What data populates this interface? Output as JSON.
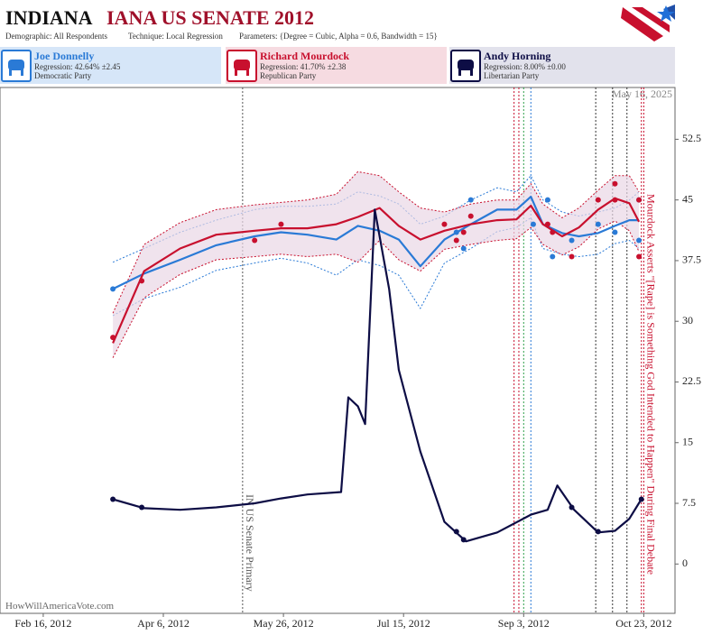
{
  "chart_data": {
    "type": "line",
    "title_state": "INDIANA",
    "title": "IANA US SENATE 2012",
    "demographic": "Demographic: All Respondents",
    "technique": "Technique: Local Regression",
    "parameters": "Parameters: {Degree = Cubic, Alpha = 0.6, Bandwidth = 15}",
    "date_note": "May 16, 2025",
    "source": "HowWillAmericaVote.com",
    "xlim": [
      "2012-01-29",
      "2012-11-05"
    ],
    "xticks": [
      {
        "value": "2012-02-16",
        "label": "Feb 16, 2012"
      },
      {
        "value": "2012-04-06",
        "label": "Apr 6, 2012"
      },
      {
        "value": "2012-05-26",
        "label": "May 26, 2012"
      },
      {
        "value": "2012-07-15",
        "label": "Jul 15, 2012"
      },
      {
        "value": "2012-09-03",
        "label": "Sep 3, 2012"
      },
      {
        "value": "2012-10-23",
        "label": "Oct 23, 2012"
      }
    ],
    "ylim": [
      -6.1,
      58.9
    ],
    "yticks": [
      0,
      7.5,
      15,
      22.5,
      30,
      37.5,
      45,
      52.5
    ],
    "grid": false,
    "series": [
      {
        "name": "Joe Donnelly",
        "regression": "Regression: 42.64% ±2.45",
        "party": "Democratic Party",
        "color": "#2a7ad6",
        "panel": "#d6e6f8",
        "x": [
          "2012-03-16",
          "2012-03-29",
          "2012-04-13",
          "2012-04-28",
          "2012-05-14",
          "2012-05-25",
          "2012-06-05",
          "2012-06-17",
          "2012-06-26",
          "2012-07-05",
          "2012-07-13",
          "2012-07-22",
          "2012-08-01",
          "2012-08-12",
          "2012-08-23",
          "2012-08-31",
          "2012-09-06",
          "2012-09-11",
          "2012-09-19",
          "2012-09-26",
          "2012-10-04",
          "2012-10-11",
          "2012-10-17",
          "2012-10-21"
        ],
        "values": [
          34.0,
          35.9,
          37.6,
          39.4,
          40.5,
          41.0,
          40.7,
          40.1,
          41.8,
          41.2,
          40.1,
          36.8,
          40.1,
          42.0,
          43.8,
          43.8,
          45.4,
          42.0,
          40.9,
          40.5,
          40.9,
          41.8,
          42.5,
          42.5
        ],
        "upper": [
          37.3,
          39,
          41,
          42.5,
          43.8,
          44.2,
          44.2,
          44.5,
          46,
          45.5,
          44.5,
          42,
          43,
          45,
          46.5,
          46,
          48,
          45,
          43.5,
          43,
          43.5,
          44,
          45,
          46
        ],
        "lower": [
          30.7,
          32.8,
          34.2,
          36.3,
          37.2,
          37.8,
          37.2,
          35.7,
          37.6,
          36.9,
          35.7,
          31.6,
          37.2,
          39,
          41.1,
          41.6,
          42.8,
          39,
          38.3,
          38,
          38.3,
          39.6,
          40,
          39
        ],
        "poll_x": [
          "2012-03-16",
          "2012-08-06",
          "2012-08-09",
          "2012-08-12",
          "2012-09-07",
          "2012-09-13",
          "2012-09-15",
          "2012-09-23",
          "2012-10-04",
          "2012-10-11",
          "2012-10-21",
          "2012-10-21"
        ],
        "poll_values": [
          34,
          41,
          39,
          45,
          42,
          45,
          38,
          40,
          42,
          41,
          45,
          40
        ]
      },
      {
        "name": "Richard Mourdock",
        "regression": "Regression: 41.70% ±2.38",
        "party": "Republican Party",
        "color": "#c8102e",
        "panel": "#f6dbe1",
        "x": [
          "2012-03-16",
          "2012-03-29",
          "2012-04-13",
          "2012-04-28",
          "2012-05-14",
          "2012-05-25",
          "2012-06-05",
          "2012-06-17",
          "2012-06-26",
          "2012-07-05",
          "2012-07-13",
          "2012-07-22",
          "2012-08-01",
          "2012-08-12",
          "2012-08-23",
          "2012-08-31",
          "2012-09-06",
          "2012-09-11",
          "2012-09-19",
          "2012-09-26",
          "2012-10-04",
          "2012-10-11",
          "2012-10-17",
          "2012-10-21"
        ],
        "values": [
          27.3,
          36.2,
          39.0,
          40.7,
          41.2,
          41.5,
          41.5,
          42.0,
          42.9,
          44.0,
          41.8,
          40.1,
          41.2,
          42.0,
          42.5,
          42.6,
          44.3,
          42.0,
          40.5,
          41.6,
          43.8,
          45.2,
          44.6,
          42.3
        ],
        "upper": [
          31,
          39.5,
          42.2,
          43.8,
          44.4,
          44.7,
          45,
          45.7,
          48.5,
          48,
          46,
          44,
          43.5,
          44.5,
          45,
          45,
          47,
          44.5,
          42.8,
          44,
          46.2,
          48,
          48,
          46
        ],
        "lower": [
          25.5,
          32.9,
          35.8,
          37.6,
          38,
          38.3,
          38,
          38.3,
          37.3,
          40,
          37.6,
          36.2,
          38.9,
          39.5,
          40,
          40.2,
          41.6,
          39.5,
          38.2,
          39.2,
          41.4,
          42.4,
          41.2,
          38.6
        ],
        "poll_x": [
          "2012-03-16",
          "2012-03-28",
          "2012-05-14",
          "2012-05-25",
          "2012-08-01",
          "2012-08-06",
          "2012-08-09",
          "2012-08-12",
          "2012-09-13",
          "2012-09-15",
          "2012-09-23",
          "2012-10-04",
          "2012-10-11",
          "2012-10-11",
          "2012-10-21",
          "2012-10-21"
        ],
        "poll_values": [
          28,
          35,
          40,
          42,
          42,
          40,
          41,
          43,
          42,
          41,
          38,
          45,
          47,
          45,
          45,
          38
        ]
      },
      {
        "name": "Andy Horning",
        "regression": "Regression: 8.00% ±0.00",
        "party": "Libertarian Party",
        "color": "#0d0d45",
        "panel": "#e2e2ec",
        "x": [
          "2012-03-16",
          "2012-03-29",
          "2012-04-13",
          "2012-04-28",
          "2012-05-14",
          "2012-05-25",
          "2012-06-05",
          "2012-06-19",
          "2012-06-22",
          "2012-06-26",
          "2012-06-29",
          "2012-07-03",
          "2012-07-09",
          "2012-07-13",
          "2012-07-22",
          "2012-08-01",
          "2012-08-10",
          "2012-08-23",
          "2012-09-06",
          "2012-09-13",
          "2012-09-17",
          "2012-09-24",
          "2012-10-04",
          "2012-10-11",
          "2012-10-17",
          "2012-10-22"
        ],
        "values": [
          8.0,
          6.9,
          6.7,
          7.0,
          7.5,
          8.1,
          8.6,
          8.9,
          20.6,
          19.5,
          17.3,
          43.8,
          34.0,
          24.0,
          13.9,
          5.2,
          2.8,
          3.9,
          6.1,
          6.7,
          9.7,
          6.7,
          3.9,
          4.1,
          5.6,
          8.0
        ],
        "poll_x": [
          "2012-03-16",
          "2012-03-28",
          "2012-08-06",
          "2012-08-09",
          "2012-09-23",
          "2012-10-04",
          "2012-10-22"
        ],
        "poll_values": [
          8,
          7,
          4,
          3,
          7,
          4,
          8
        ]
      }
    ],
    "events": [
      {
        "x": "2012-05-09",
        "color": "#555555",
        "label": "IN US Senate Primary"
      },
      {
        "x": "2012-08-30",
        "color": "#c8102e"
      },
      {
        "x": "2012-09-01",
        "color": "#c8102e"
      },
      {
        "x": "2012-09-03",
        "color": "#2e9e4a"
      },
      {
        "x": "2012-09-06",
        "color": "#2a7ad6"
      },
      {
        "x": "2012-10-03",
        "color": "#333333"
      },
      {
        "x": "2012-10-10",
        "color": "#333333"
      },
      {
        "x": "2012-10-16",
        "color": "#333333"
      },
      {
        "x": "2012-10-22",
        "color": "#c8102e"
      },
      {
        "x": "2012-10-23",
        "color": "#c8102e",
        "label": "Mourdock Asserts \"[Rape] is Something God Intended to Happen\" During Final Debate"
      }
    ]
  }
}
